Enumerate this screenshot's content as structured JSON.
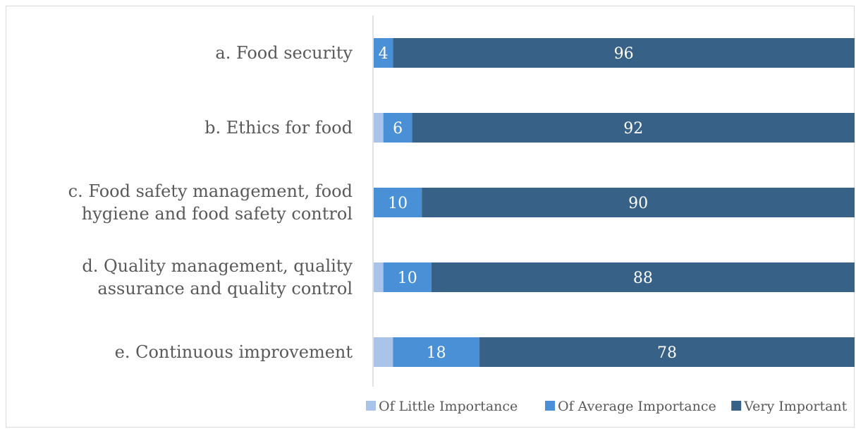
{
  "chart_data": {
    "type": "bar",
    "orientation": "horizontal",
    "stacked": true,
    "title": "",
    "xlabel": "",
    "ylabel": "",
    "xlim": [
      0,
      100
    ],
    "grid": false,
    "legend_position": "bottom-right",
    "categories": [
      [
        "a. Food security"
      ],
      [
        "b. Ethics for food"
      ],
      [
        "c. Food safety management, food",
        "hygiene and food safety control"
      ],
      [
        "d. Quality management, quality",
        "assurance and quality control"
      ],
      [
        "e. Continuous improvement"
      ]
    ],
    "series": [
      {
        "name": "Of Little Importance",
        "color": "#a9c4e8",
        "values": [
          0,
          2,
          0,
          2,
          4
        ],
        "labels": [
          "",
          "",
          "",
          "",
          ""
        ]
      },
      {
        "name": "Of Average Importance",
        "color": "#4a90d6",
        "values": [
          4,
          6,
          10,
          10,
          18
        ],
        "labels": [
          "4",
          "6",
          "10",
          "10",
          "18"
        ]
      },
      {
        "name": "Very Important",
        "color": "#376187",
        "values": [
          96,
          92,
          90,
          88,
          78
        ],
        "labels": [
          "96",
          "92",
          "90",
          "88",
          "78"
        ]
      }
    ]
  }
}
